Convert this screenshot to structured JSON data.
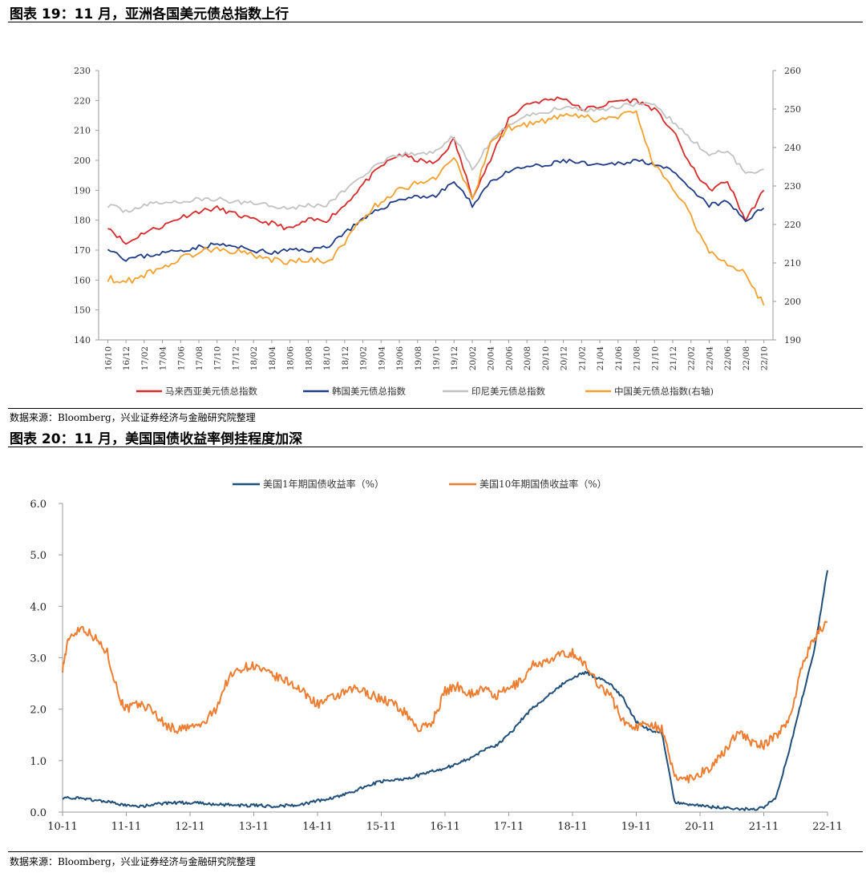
{
  "figure1": {
    "title": "图表 19：11 月，亚洲各国美元债总指数上行",
    "source": "数据来源：Bloomberg，兴业证券经济与金融研究院整理"
  },
  "figure2": {
    "title": "图表 20：11 月，美国国债收益率倒挂程度加深",
    "source": "数据来源：Bloomberg，兴业证券经济与金融研究院整理"
  },
  "colors": {
    "malaysia": "#d62a2a",
    "korea": "#1f3b85",
    "indonesia": "#c2c2c2",
    "china": "#f3a02e",
    "us1y": "#1f4e79",
    "us10y": "#ed7d31"
  },
  "chart_data": [
    {
      "type": "line",
      "title": "",
      "x": [
        "16/10",
        "16/12",
        "17/02",
        "17/04",
        "17/06",
        "17/08",
        "17/10",
        "17/12",
        "18/02",
        "18/04",
        "18/06",
        "18/08",
        "18/10",
        "18/12",
        "19/02",
        "19/04",
        "19/06",
        "19/08",
        "19/10",
        "19/12",
        "20/02",
        "20/04",
        "20/06",
        "20/08",
        "20/10",
        "20/12",
        "21/02",
        "21/04",
        "21/06",
        "21/08",
        "21/10",
        "21/12",
        "22/02",
        "22/04",
        "22/06",
        "22/08",
        "22/10"
      ],
      "yleft": {
        "ylim": [
          140,
          230
        ],
        "ticks": [
          140,
          150,
          160,
          170,
          180,
          190,
          200,
          210,
          220,
          230
        ]
      },
      "yright": {
        "ylim": [
          190,
          260
        ],
        "ticks": [
          190,
          200,
          210,
          220,
          230,
          240,
          250,
          260
        ]
      },
      "series": [
        {
          "name": "马来西亚美元债总指数",
          "axis": "left",
          "color_key": "malaysia",
          "values": [
            178,
            172,
            176,
            178,
            181,
            183,
            184,
            182,
            180,
            179,
            177,
            180,
            180,
            185,
            192,
            198,
            202,
            200,
            199,
            207,
            188,
            200,
            214,
            219,
            220,
            221,
            217,
            218,
            220,
            220,
            217,
            210,
            198,
            190,
            193,
            180,
            190
          ]
        },
        {
          "name": "韩国美元债总指数",
          "axis": "left",
          "color_key": "korea",
          "values": [
            171,
            167,
            168,
            169,
            170,
            171,
            172,
            171,
            170,
            169,
            170,
            170,
            171,
            176,
            180,
            184,
            187,
            188,
            188,
            193,
            185,
            193,
            196,
            198,
            198,
            200,
            199,
            198,
            199,
            200,
            199,
            196,
            190,
            185,
            186,
            180,
            184
          ]
        },
        {
          "name": "印尼美元债总指数",
          "axis": "left",
          "color_key": "indonesia",
          "values": [
            185,
            183,
            185,
            186,
            186,
            187,
            187,
            186,
            186,
            185,
            184,
            185,
            185,
            190,
            195,
            199,
            202,
            202,
            203,
            208,
            197,
            206,
            212,
            215,
            216,
            218,
            217,
            217,
            218,
            219,
            218,
            213,
            207,
            202,
            203,
            196,
            197
          ]
        },
        {
          "name": "中国美元债总指数(右轴)",
          "axis": "right",
          "color_key": "china",
          "values": [
            206,
            205,
            207,
            209,
            211,
            213,
            214,
            213,
            212,
            211,
            210,
            211,
            210,
            215,
            222,
            226,
            229,
            231,
            232,
            238,
            226,
            241,
            245,
            246,
            247,
            248,
            248,
            247,
            248,
            249,
            235,
            230,
            222,
            213,
            210,
            207,
            199
          ]
        }
      ],
      "legend": [
        "马来西亚美元债总指数",
        "韩国美元债总指数",
        "印尼美元债总指数",
        "中国美元债总指数(右轴)"
      ],
      "legend_position": "bottom"
    },
    {
      "type": "line",
      "title": "",
      "x": [
        "10-11",
        "11-11",
        "12-11",
        "13-11",
        "14-11",
        "15-11",
        "16-11",
        "17-11",
        "18-11",
        "19-11",
        "20-11",
        "21-11",
        "22-11"
      ],
      "ylim": [
        0,
        6
      ],
      "yticks": [
        "0.0",
        "1.0",
        "2.0",
        "3.0",
        "4.0",
        "5.0",
        "6.0"
      ],
      "series": [
        {
          "name": "美国1年期国债收益率（%）",
          "color_key": "us1y",
          "x": [
            0,
            0.2,
            0.4,
            0.6,
            0.8,
            1,
            1.2,
            1.4,
            1.6,
            1.8,
            2,
            2.2,
            2.4,
            2.6,
            2.8,
            3,
            3.2,
            3.4,
            3.6,
            3.8,
            4,
            4.2,
            4.4,
            4.6,
            4.8,
            5,
            5.2,
            5.4,
            5.6,
            5.8,
            6,
            6.2,
            6.4,
            6.6,
            6.8,
            7,
            7.2,
            7.4,
            7.6,
            7.8,
            8,
            8.2,
            8.4,
            8.6,
            8.8,
            9,
            9.2,
            9.4,
            9.6,
            9.8,
            10,
            10.2,
            10.4,
            10.6,
            10.8,
            11,
            11.2,
            11.4,
            11.6,
            11.8,
            12
          ],
          "values": [
            0.28,
            0.27,
            0.25,
            0.22,
            0.18,
            0.12,
            0.11,
            0.14,
            0.17,
            0.18,
            0.18,
            0.17,
            0.15,
            0.14,
            0.13,
            0.13,
            0.12,
            0.12,
            0.13,
            0.16,
            0.22,
            0.26,
            0.33,
            0.42,
            0.52,
            0.6,
            0.62,
            0.65,
            0.72,
            0.8,
            0.85,
            0.95,
            1.05,
            1.2,
            1.3,
            1.5,
            1.8,
            2.05,
            2.25,
            2.45,
            2.6,
            2.72,
            2.6,
            2.5,
            2.2,
            1.75,
            1.6,
            1.55,
            0.2,
            0.15,
            0.12,
            0.1,
            0.08,
            0.06,
            0.05,
            0.08,
            0.3,
            1.2,
            2.2,
            3.2,
            4.7
          ]
        },
        {
          "name": "美国10年期国债收益率（%）",
          "color_key": "us10y",
          "x": [
            0,
            0.1,
            0.3,
            0.5,
            0.7,
            0.9,
            1,
            1.2,
            1.4,
            1.6,
            1.8,
            2,
            2.2,
            2.4,
            2.6,
            2.8,
            3,
            3.2,
            3.4,
            3.6,
            3.8,
            4,
            4.2,
            4.4,
            4.6,
            4.8,
            5,
            5.2,
            5.4,
            5.6,
            5.8,
            6,
            6.2,
            6.4,
            6.6,
            6.8,
            7,
            7.2,
            7.4,
            7.6,
            7.8,
            8,
            8.2,
            8.4,
            8.6,
            8.8,
            9,
            9.2,
            9.4,
            9.6,
            9.8,
            10,
            10.2,
            10.4,
            10.6,
            10.8,
            11,
            11.2,
            11.4,
            11.6,
            11.8,
            12
          ],
          "values": [
            2.8,
            3.4,
            3.6,
            3.4,
            3.1,
            2.2,
            2.0,
            2.1,
            2.0,
            1.7,
            1.6,
            1.65,
            1.7,
            2.0,
            2.6,
            2.8,
            2.85,
            2.7,
            2.6,
            2.5,
            2.3,
            2.1,
            2.2,
            2.3,
            2.4,
            2.3,
            2.2,
            2.1,
            1.9,
            1.6,
            1.75,
            2.35,
            2.45,
            2.3,
            2.4,
            2.25,
            2.4,
            2.55,
            2.9,
            2.9,
            3.05,
            3.1,
            2.85,
            2.5,
            2.25,
            1.75,
            1.65,
            1.75,
            1.6,
            0.7,
            0.65,
            0.75,
            0.9,
            1.2,
            1.6,
            1.35,
            1.3,
            1.5,
            1.8,
            2.85,
            3.4,
            3.7
          ]
        }
      ],
      "legend": [
        "美国1年期国债收益率（%）",
        "美国10年期国债收益率（%）"
      ],
      "legend_position": "top"
    }
  ]
}
